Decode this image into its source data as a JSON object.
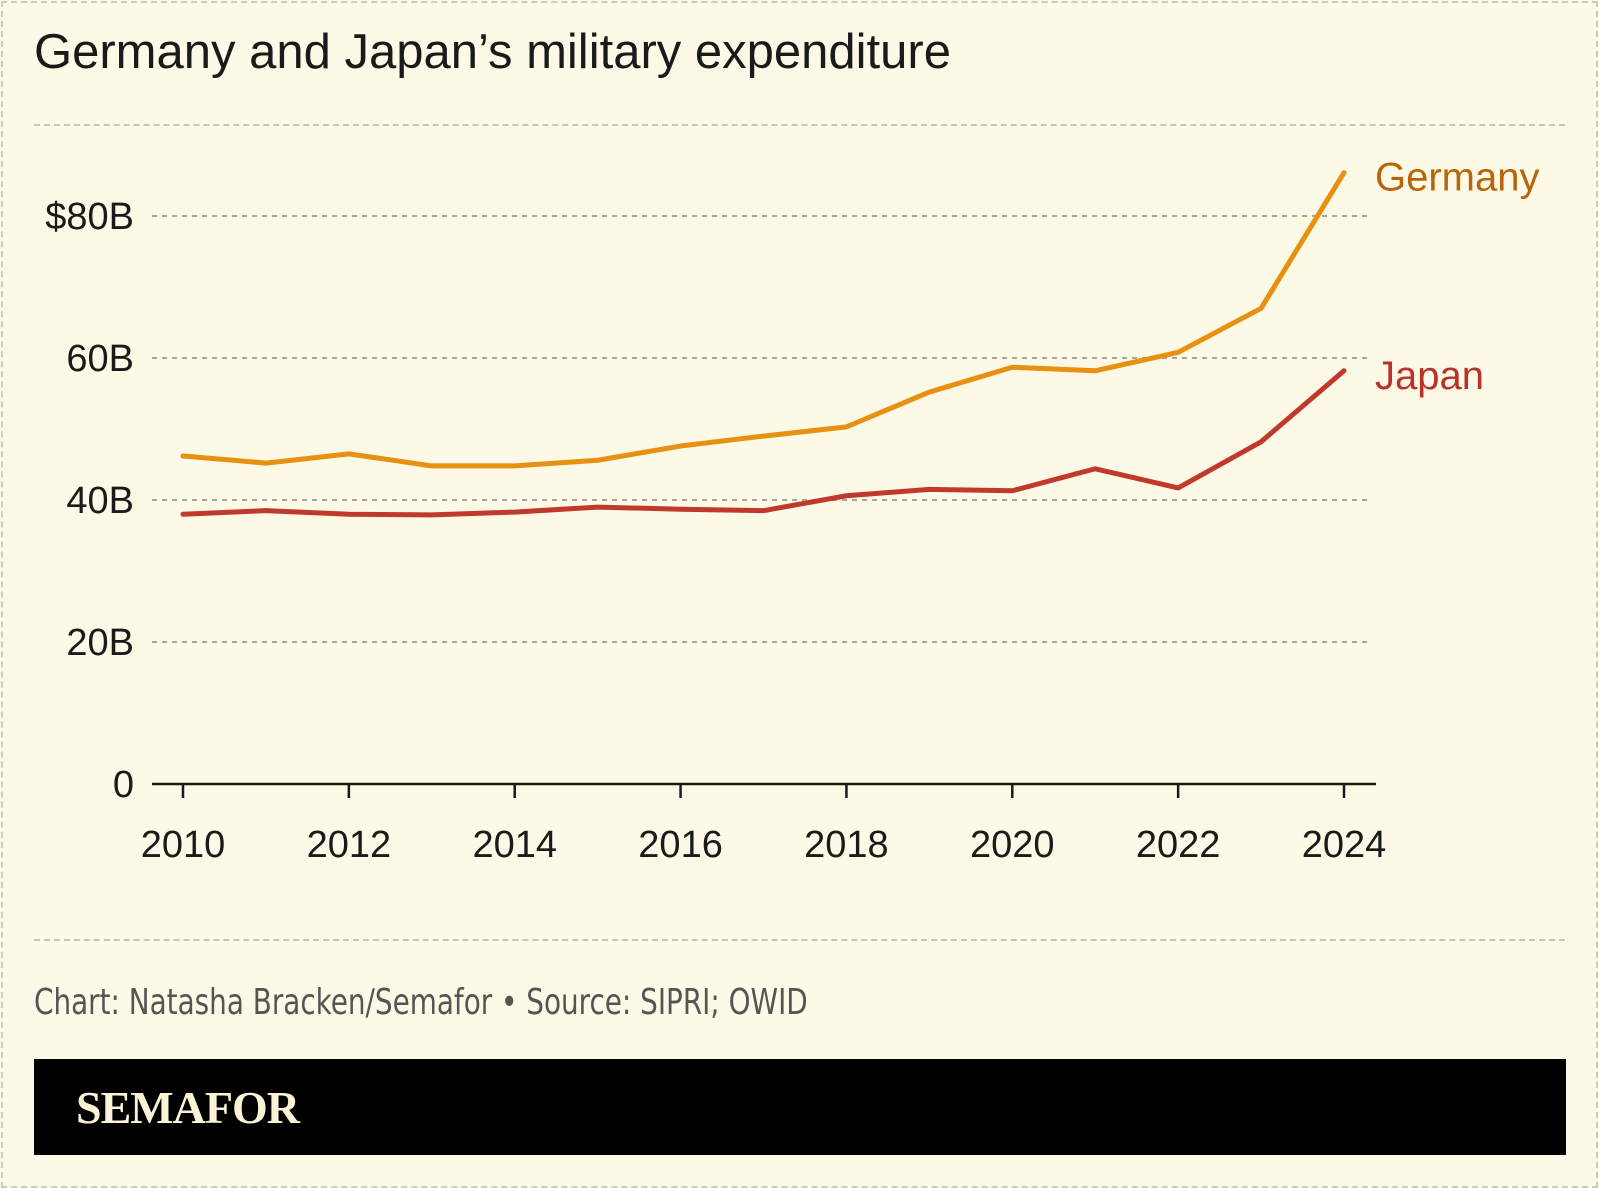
{
  "title": "Germany and Japan’s military expenditure",
  "credit": "Chart: Natasha Bracken/Semafor • Source: SIPRI; OWID",
  "logo": "SEMAFOR",
  "chart_data": {
    "type": "line",
    "title": "Germany and Japan’s military expenditure",
    "x": [
      2010,
      2011,
      2012,
      2013,
      2014,
      2015,
      2016,
      2017,
      2018,
      2019,
      2020,
      2021,
      2022,
      2023,
      2024
    ],
    "xticks": [
      2010,
      2012,
      2014,
      2016,
      2018,
      2020,
      2022,
      2024
    ],
    "xtick_labels": [
      "2010",
      "2012",
      "2014",
      "2016",
      "2018",
      "2020",
      "2022",
      "2024"
    ],
    "yticks": [
      0,
      20,
      40,
      60,
      80
    ],
    "ytick_labels": [
      "0",
      "20B",
      "40B",
      "60B",
      "$80B"
    ],
    "ylim": [
      0,
      90
    ],
    "y_unit": "billion USD",
    "grid": "horizontal dashed",
    "legend": "direct labels at line ends",
    "series": [
      {
        "name": "Germany",
        "color": "#e8900f",
        "label_color": "#b8650a",
        "values": [
          46.2,
          45.2,
          46.5,
          44.8,
          44.8,
          45.6,
          47.6,
          49.0,
          50.3,
          55.2,
          58.7,
          58.2,
          60.8,
          67.0,
          86.1
        ]
      },
      {
        "name": "Japan",
        "color": "#c0392b",
        "label_color": "#b8322a",
        "values": [
          38.0,
          38.5,
          38.0,
          37.9,
          38.3,
          39.0,
          38.7,
          38.5,
          40.6,
          41.5,
          41.3,
          44.4,
          41.7,
          48.2,
          58.2
        ]
      }
    ]
  }
}
